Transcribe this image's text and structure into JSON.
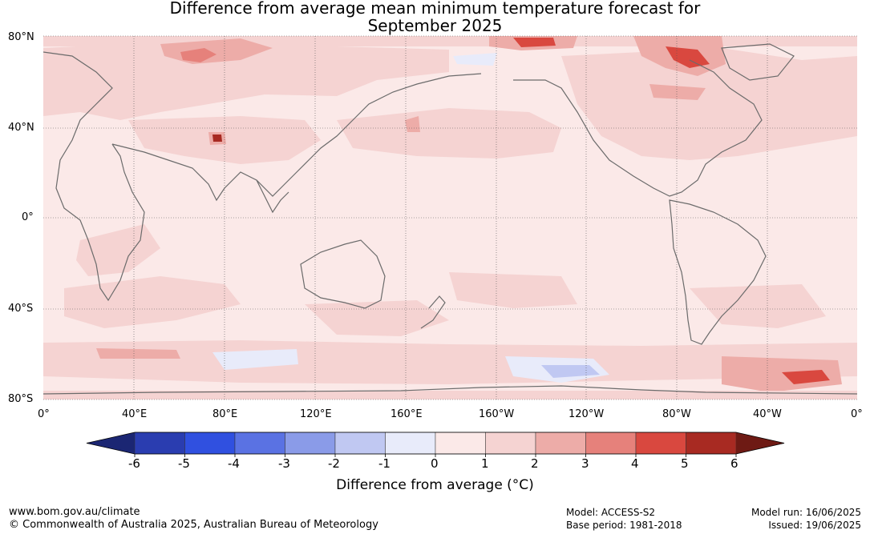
{
  "title_line1": "Difference from average mean minimum temperature forecast for",
  "title_line2": "September 2025",
  "lat_labels": [
    "80°N",
    "40°N",
    "0°",
    "40°S",
    "80°S"
  ],
  "lon_labels": [
    "0°",
    "40°E",
    "80°E",
    "120°E",
    "160°E",
    "160°W",
    "120°W",
    "80°W",
    "40°W",
    "0°"
  ],
  "colorbar": {
    "ticks": [
      "-6",
      "-5",
      "-4",
      "-3",
      "-2",
      "-1",
      "0",
      "1",
      "2",
      "3",
      "4",
      "5",
      "6"
    ],
    "label": "Difference from average (°C)",
    "colors": [
      "#1b2673",
      "#2a3db0",
      "#3050e0",
      "#5a72e3",
      "#8a9be8",
      "#c0c8f2",
      "#e8ebfa",
      "#fbe9e8",
      "#f5d3d2",
      "#edaca8",
      "#e6817b",
      "#d9483f",
      "#a82a22",
      "#6e1a14"
    ]
  },
  "footer": {
    "url": "www.bom.gov.au/climate",
    "copyright": "© Commonwealth of Australia 2025, Australian Bureau of Meteorology",
    "model": "Model: ACCESS-S2",
    "base_period": "Base period: 1981-2018",
    "model_run": "Model run: 16/06/2025",
    "issued": "Issued: 19/06/2025"
  }
}
